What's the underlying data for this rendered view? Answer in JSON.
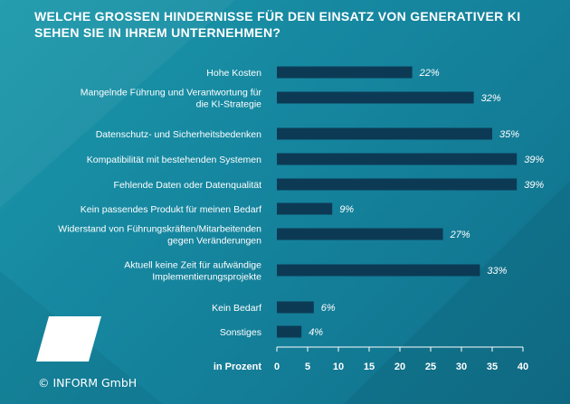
{
  "header": {
    "title_line1": "WELCHE GROSSEN HINDERNISSE FÜR DEN EINSATZ VON GENERATIVER KI",
    "title_line2": "SEHEN SIE IN IHREM UNTERNEHMEN?"
  },
  "footer": {
    "copyright": "© INFORM GmbH"
  },
  "chart_data": {
    "type": "bar",
    "orientation": "horizontal",
    "title": "WELCHE GROSSEN HINDERNISSE FÜR DEN EINSATZ VON GENERATIVER KI SEHEN SIE IN IHREM UNTERNEHMEN?",
    "xlabel": "in Prozent",
    "ylabel": "",
    "xlim": [
      0,
      40
    ],
    "xticks": [
      "0",
      "5",
      "10",
      "15",
      "20",
      "25",
      "30",
      "35",
      "40"
    ],
    "value_suffix": "%",
    "categories": [
      [
        "Hohe Kosten"
      ],
      [
        "Mangelnde Führung und Verantwortung für",
        "die KI-Strategie"
      ],
      [
        "Datenschutz- und Sicherheitsbedenken"
      ],
      [
        "Kompatibilität mit bestehenden Systemen"
      ],
      [
        "Fehlende Daten oder Datenqualität"
      ],
      [
        "Kein passendes Produkt für meinen Bedarf"
      ],
      [
        "Widerstand von Führungskräften/Mitarbeitenden",
        "gegen Veränderungen"
      ],
      [
        "Aktuell keine Zeit für aufwändige",
        "Implementierungsprojekte"
      ],
      [
        "Kein Bedarf"
      ],
      [
        "Sonstiges"
      ]
    ],
    "values": [
      22,
      32,
      35,
      39,
      39,
      9,
      27,
      33,
      6,
      4
    ],
    "bar_color": "#0c3a55",
    "label_color": "#ffffff"
  }
}
